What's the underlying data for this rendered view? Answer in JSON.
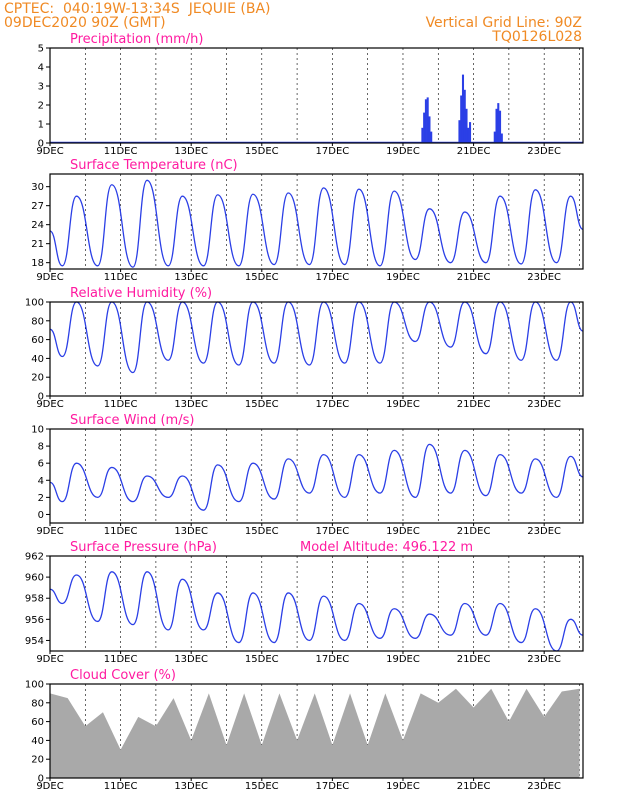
{
  "header": {
    "line1_left": "CPTEC:  040:19W-13:34S  JEQUIE (BA)",
    "line2_left": "09DEC2020 90Z (GMT)",
    "line1_right": "Vertical Grid Line: 90Z",
    "line2_right": "TQ0126L028"
  },
  "colors": {
    "header": "#f08a24",
    "title": "#ff1aa0",
    "line": "#2b3fe6",
    "cloud": "#a9a9a9"
  },
  "x_ticks": [
    "9DEC",
    "11DEC",
    "13DEC",
    "15DEC",
    "17DEC",
    "19DEC",
    "21DEC",
    "23DEC"
  ],
  "chart_data": [
    {
      "id": "precip",
      "type": "bar",
      "title": "Precipitation (mm/h)",
      "x_range": [
        9,
        24.1
      ],
      "ylim": [
        0,
        5
      ],
      "yticks": [
        0,
        1,
        2,
        3,
        4,
        5
      ],
      "bars": [
        {
          "x": 19.55,
          "y": 0.8
        },
        {
          "x": 19.6,
          "y": 1.6
        },
        {
          "x": 19.65,
          "y": 2.3
        },
        {
          "x": 19.7,
          "y": 2.4
        },
        {
          "x": 19.75,
          "y": 1.4
        },
        {
          "x": 19.8,
          "y": 0.6
        },
        {
          "x": 20.6,
          "y": 1.2
        },
        {
          "x": 20.65,
          "y": 2.5
        },
        {
          "x": 20.7,
          "y": 3.6
        },
        {
          "x": 20.75,
          "y": 2.8
        },
        {
          "x": 20.8,
          "y": 1.8
        },
        {
          "x": 20.85,
          "y": 0.8
        },
        {
          "x": 20.9,
          "y": 1.1
        },
        {
          "x": 21.6,
          "y": 0.6
        },
        {
          "x": 21.65,
          "y": 1.8
        },
        {
          "x": 21.7,
          "y": 2.1
        },
        {
          "x": 21.75,
          "y": 1.7
        },
        {
          "x": 21.8,
          "y": 0.5
        }
      ]
    },
    {
      "id": "temp",
      "type": "line",
      "title": "Surface Temperature (nC)",
      "x_range": [
        9,
        24.1
      ],
      "ylim": [
        17,
        32
      ],
      "yticks": [
        18,
        21,
        24,
        27,
        30
      ],
      "days": [
        9,
        10,
        11,
        12,
        13,
        14,
        15,
        16,
        17,
        18,
        19,
        20,
        21,
        22,
        23
      ],
      "max": [
        28.5,
        30.3,
        31,
        28.5,
        28.7,
        28.8,
        29,
        29.8,
        29.6,
        29.3,
        26.5,
        26.0,
        28.5,
        29.5,
        28.5
      ],
      "min": [
        17.5,
        17.5,
        17.3,
        17.5,
        17.5,
        17.5,
        17.7,
        17.7,
        17.7,
        17.5,
        18.5,
        18.0,
        18.0,
        17.8,
        18.0
      ]
    },
    {
      "id": "rh",
      "type": "line",
      "title": "Relative Humidity (%)",
      "x_range": [
        9,
        24.1
      ],
      "ylim": [
        0,
        100
      ],
      "yticks": [
        0,
        20,
        40,
        60,
        80,
        100
      ],
      "days": [
        9,
        10,
        11,
        12,
        13,
        14,
        15,
        16,
        17,
        18,
        19,
        20,
        21,
        22,
        23
      ],
      "max": [
        100,
        100,
        100,
        100,
        100,
        100,
        100,
        100,
        100,
        100,
        100,
        100,
        100,
        100,
        100
      ],
      "min": [
        42,
        32,
        25,
        38,
        35,
        33,
        35,
        33,
        35,
        35,
        58,
        52,
        45,
        38,
        38
      ]
    },
    {
      "id": "wind",
      "type": "line",
      "title": "Surface Wind (m/s)",
      "x_range": [
        9,
        24.1
      ],
      "ylim": [
        -1,
        10
      ],
      "yticks": [
        0,
        2,
        4,
        6,
        8,
        10
      ],
      "days": [
        9,
        10,
        11,
        12,
        13,
        14,
        15,
        16,
        17,
        18,
        19,
        20,
        21,
        22,
        23
      ],
      "max": [
        6.0,
        5.5,
        4.5,
        4.5,
        5.8,
        6.0,
        6.5,
        7.0,
        7.0,
        7.5,
        8.2,
        7.5,
        7.0,
        6.5,
        6.8
      ],
      "min": [
        1.5,
        2.0,
        1.5,
        2.0,
        0.5,
        1.5,
        1.8,
        2.5,
        2.0,
        2.5,
        2.0,
        2.5,
        2.2,
        2.5,
        2.0
      ]
    },
    {
      "id": "press",
      "type": "line",
      "title": "Surface Pressure (hPa)",
      "annotation": "Model Altitude: 496.122 m",
      "x_range": [
        9,
        24.1
      ],
      "ylim": [
        953,
        962
      ],
      "yticks": [
        954,
        956,
        958,
        960,
        962
      ],
      "days": [
        9,
        10,
        11,
        12,
        13,
        14,
        15,
        16,
        17,
        18,
        19,
        20,
        21,
        22,
        23
      ],
      "max": [
        960.2,
        960.5,
        960.5,
        959.8,
        958.5,
        958.5,
        958.5,
        958.2,
        957.5,
        957,
        956.5,
        957.5,
        957.5,
        957,
        956
      ],
      "min": [
        957.5,
        955.8,
        955.5,
        955,
        955,
        953.8,
        953.8,
        954,
        954,
        954.2,
        954.2,
        954.5,
        954.5,
        953.8,
        953
      ]
    },
    {
      "id": "cloud",
      "type": "area",
      "title": "Cloud Cover (%)",
      "x_range": [
        9,
        24.1
      ],
      "ylim": [
        0,
        100
      ],
      "yticks": [
        0,
        20,
        40,
        60,
        80,
        100
      ],
      "day": [
        9,
        9.5,
        10,
        10.5,
        11,
        11.5,
        12,
        12.5,
        13,
        13.5,
        14,
        14.5,
        15,
        15.5,
        16,
        16.5,
        17,
        17.5,
        18,
        18.5,
        19,
        19.5,
        20,
        20.5,
        21,
        21.5,
        22,
        22.5,
        23,
        23.5,
        24
      ],
      "level": [
        90,
        85,
        55,
        70,
        30,
        65,
        55,
        85,
        40,
        90,
        35,
        90,
        35,
        90,
        40,
        90,
        35,
        90,
        35,
        90,
        40,
        90,
        80,
        95,
        75,
        95,
        60,
        95,
        65,
        92,
        95
      ]
    }
  ]
}
